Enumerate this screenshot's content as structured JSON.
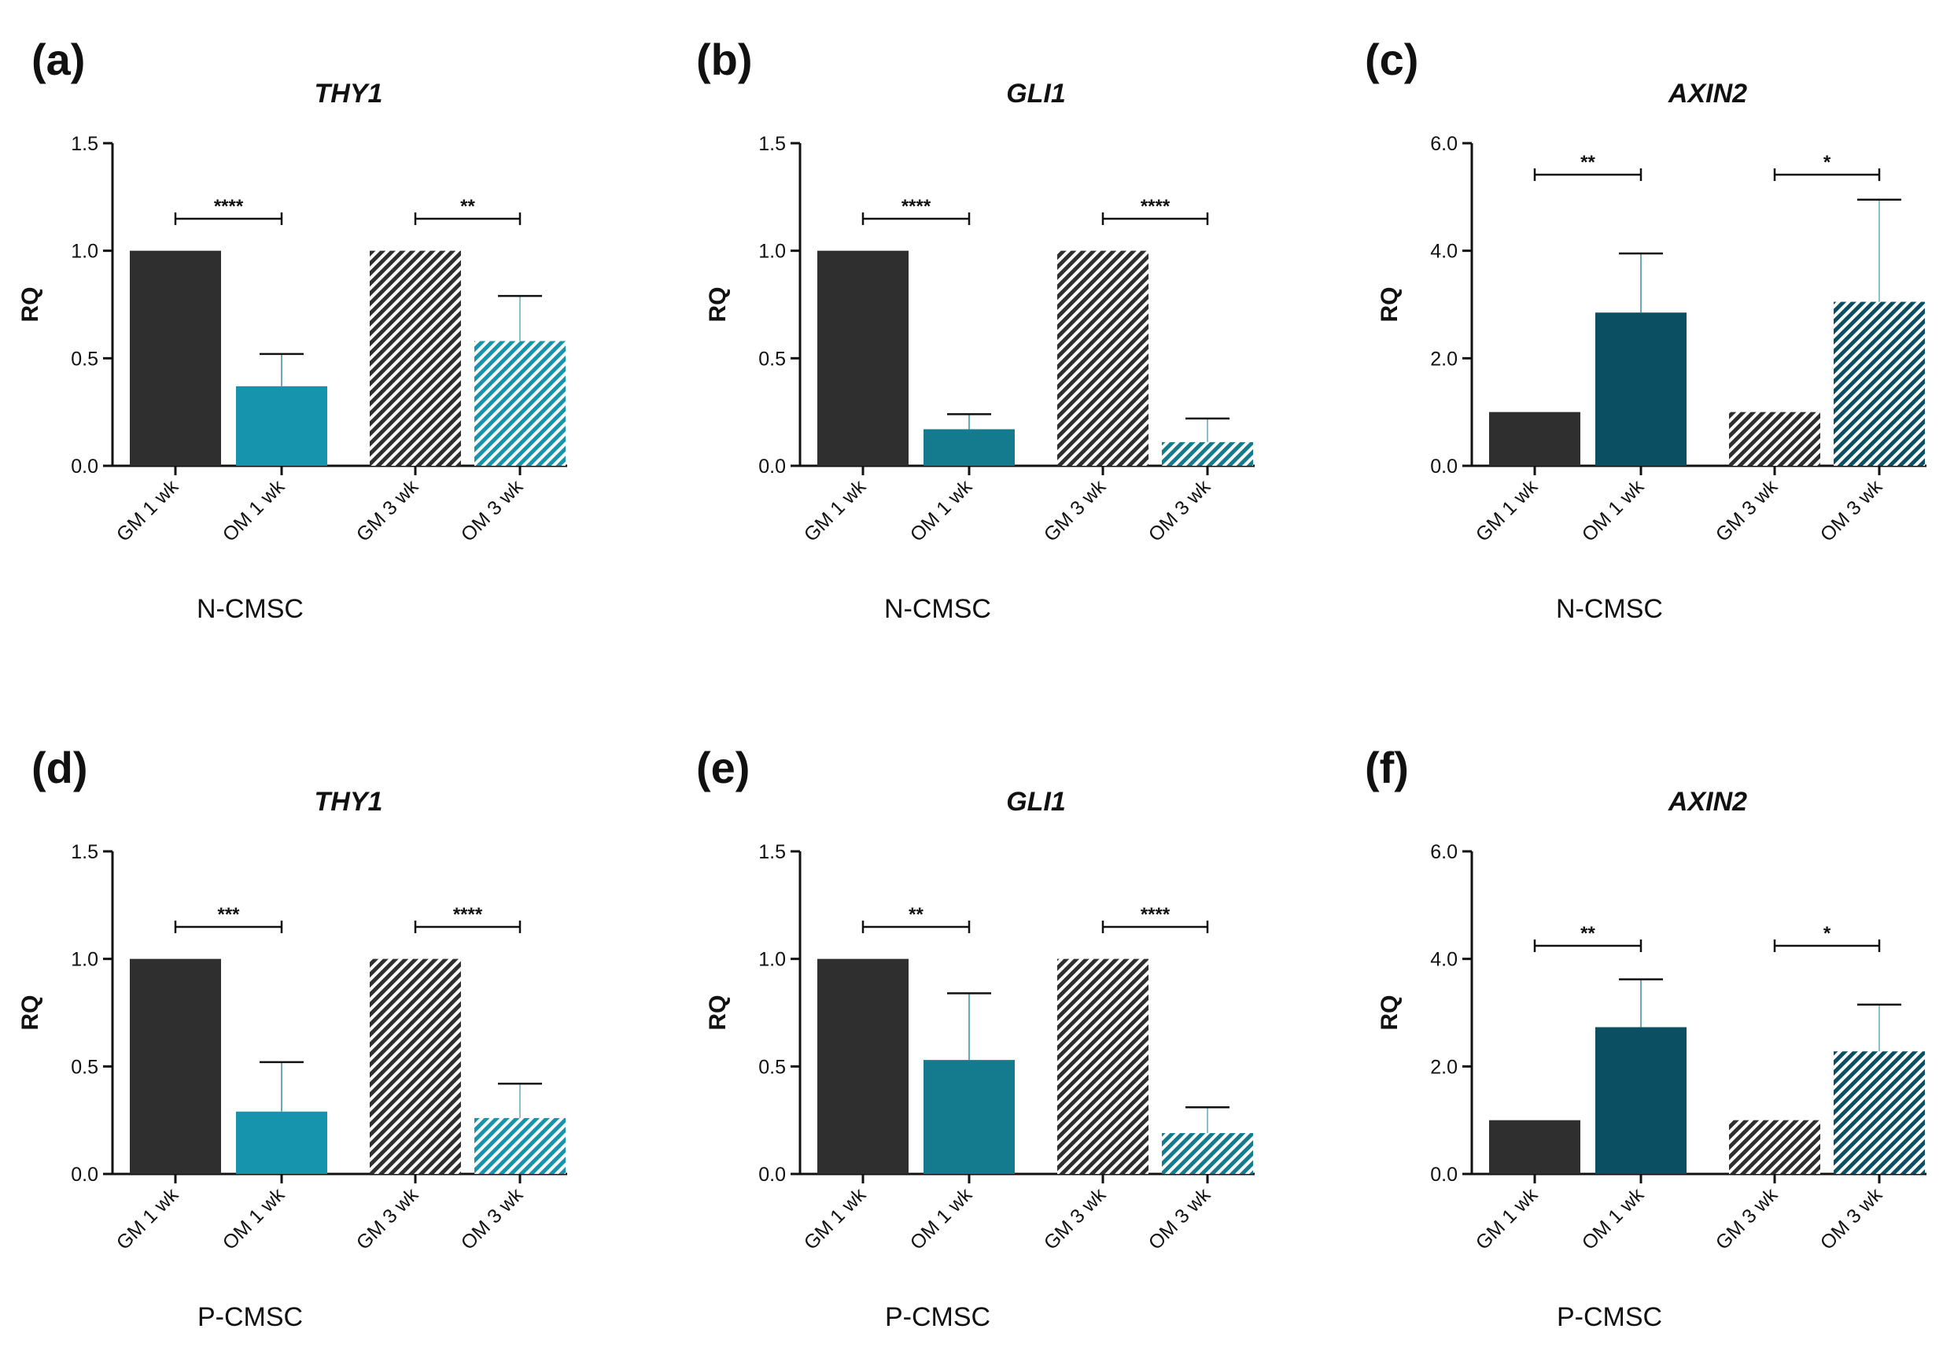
{
  "colors": {
    "gm": "#2f2f2f",
    "om_light": "#1794ad",
    "om_mid": "#147b8f",
    "om_dark": "#0b4f62",
    "axis": "#111111"
  },
  "chart_data": [
    {
      "type": "bar",
      "panel": "(a)",
      "title": "THY1",
      "ylabel": "RQ",
      "xlabel": "N-CMSC",
      "categories": [
        "GM 1 wk",
        "OM 1 wk",
        "GM 3 wk",
        "OM 3 wk"
      ],
      "values": [
        1.0,
        0.37,
        1.0,
        0.58
      ],
      "error_upper": [
        0,
        0.52,
        0,
        0.79
      ],
      "ylim": [
        0,
        1.5
      ],
      "ticks": [
        "0.0",
        "0.5",
        "1.0",
        "1.5"
      ],
      "tick_values": [
        0,
        0.5,
        1.0,
        1.5
      ],
      "tone": "light",
      "significance": [
        {
          "pair": [
            0,
            1
          ],
          "label": "****"
        },
        {
          "pair": [
            2,
            3
          ],
          "label": "**"
        }
      ]
    },
    {
      "type": "bar",
      "panel": "(b)",
      "title": "GLI1",
      "ylabel": "RQ",
      "xlabel": "N-CMSC",
      "categories": [
        "GM 1 wk",
        "OM 1 wk",
        "GM 3 wk",
        "OM 3 wk"
      ],
      "values": [
        1.0,
        0.17,
        1.0,
        0.11
      ],
      "error_upper": [
        0,
        0.24,
        0,
        0.22
      ],
      "ylim": [
        0,
        1.5
      ],
      "ticks": [
        "0.0",
        "0.5",
        "1.0",
        "1.5"
      ],
      "tick_values": [
        0,
        0.5,
        1.0,
        1.5
      ],
      "tone": "mid",
      "significance": [
        {
          "pair": [
            0,
            1
          ],
          "label": "****"
        },
        {
          "pair": [
            2,
            3
          ],
          "label": "****"
        }
      ]
    },
    {
      "type": "bar",
      "panel": "(c)",
      "title": "AXIN2",
      "ylabel": "RQ",
      "xlabel": "N-CMSC",
      "categories": [
        "GM 1 wk",
        "OM 1 wk",
        "GM 3 wk",
        "OM 3 wk"
      ],
      "values": [
        1.0,
        2.85,
        1.0,
        3.05
      ],
      "error_upper": [
        0,
        3.95,
        0,
        4.95
      ],
      "ylim": [
        0,
        6.0
      ],
      "ticks": [
        "0.0",
        "2.0",
        "4.0",
        "6.0"
      ],
      "tick_values": [
        0,
        2.0,
        4.0,
        6.0
      ],
      "tone": "dark",
      "significance": [
        {
          "pair": [
            0,
            1
          ],
          "label": "**"
        },
        {
          "pair": [
            2,
            3
          ],
          "label": "*"
        }
      ]
    },
    {
      "type": "bar",
      "panel": "(d)",
      "title": "THY1",
      "ylabel": "RQ",
      "xlabel": "P-CMSC",
      "categories": [
        "GM 1 wk",
        "OM 1 wk",
        "GM 3 wk",
        "OM 3 wk"
      ],
      "values": [
        1.0,
        0.29,
        1.0,
        0.26
      ],
      "error_upper": [
        0,
        0.52,
        0,
        0.42
      ],
      "ylim": [
        0,
        1.5
      ],
      "ticks": [
        "0.0",
        "0.5",
        "1.0",
        "1.5"
      ],
      "tick_values": [
        0,
        0.5,
        1.0,
        1.5
      ],
      "tone": "light",
      "significance": [
        {
          "pair": [
            0,
            1
          ],
          "label": "***"
        },
        {
          "pair": [
            2,
            3
          ],
          "label": "****"
        }
      ]
    },
    {
      "type": "bar",
      "panel": "(e)",
      "title": "GLI1",
      "ylabel": "RQ",
      "xlabel": "P-CMSC",
      "categories": [
        "GM 1 wk",
        "OM 1 wk",
        "GM 3 wk",
        "OM 3 wk"
      ],
      "values": [
        1.0,
        0.53,
        1.0,
        0.19
      ],
      "error_upper": [
        0,
        0.84,
        0,
        0.31
      ],
      "ylim": [
        0,
        1.5
      ],
      "ticks": [
        "0.0",
        "0.5",
        "1.0",
        "1.5"
      ],
      "tick_values": [
        0,
        0.5,
        1.0,
        1.5
      ],
      "tone": "mid",
      "significance": [
        {
          "pair": [
            0,
            1
          ],
          "label": "**"
        },
        {
          "pair": [
            2,
            3
          ],
          "label": "****"
        }
      ]
    },
    {
      "type": "bar",
      "panel": "(f)",
      "title": "AXIN2",
      "ylabel": "RQ",
      "xlabel": "P-CMSC",
      "categories": [
        "GM 1 wk",
        "OM 1 wk",
        "GM 3 wk",
        "OM 3 wk"
      ],
      "values": [
        1.0,
        2.73,
        1.0,
        2.28
      ],
      "error_upper": [
        0,
        3.62,
        0,
        3.15
      ],
      "ylim": [
        0,
        6.0
      ],
      "ticks": [
        "0.0",
        "2.0",
        "4.0",
        "6.0"
      ],
      "tick_values": [
        0,
        2.0,
        4.0,
        6.0
      ],
      "tone": "dark",
      "significance": [
        {
          "pair": [
            0,
            1
          ],
          "label": "**"
        },
        {
          "pair": [
            2,
            3
          ],
          "label": "*"
        }
      ]
    }
  ]
}
